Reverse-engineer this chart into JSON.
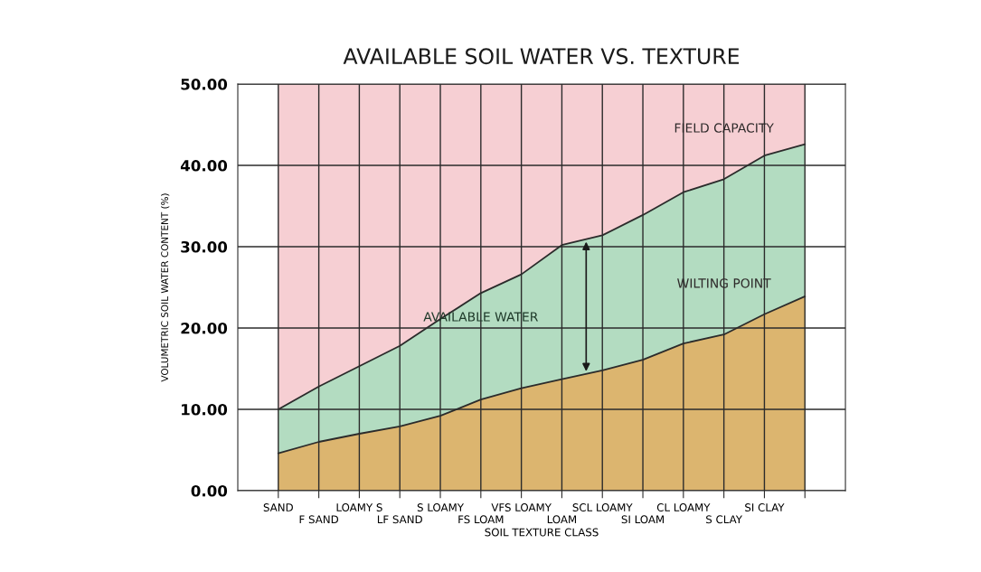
{
  "chart_data": {
    "type": "area",
    "title": "AVAILABLE SOIL WATER VS. TEXTURE",
    "xlabel": "SOIL TEXTURE CLASS",
    "ylabel": "VOLUMETRIC SOIL WATER CONTENT (%)",
    "categories": [
      "SAND",
      "F SAND",
      "LOAMY S",
      "LF SAND",
      "S LOAMY",
      "FS LOAM",
      "VFS LOAMY",
      "LOAM",
      "SCL LOAMY",
      "SI LOAM",
      "CL LOAMY",
      "S CLAY",
      "SI CLAY",
      null
    ],
    "series": [
      {
        "name": "FIELD CAPACITY",
        "color": "#b3dcc1",
        "values": [
          10.0,
          12.8,
          15.3,
          17.8,
          21.1,
          24.3,
          26.6,
          30.2,
          31.4,
          33.9,
          36.7,
          38.3,
          41.2,
          42.6
        ]
      },
      {
        "name": "WILTING POINT",
        "color": "#dcb56f",
        "values": [
          4.6,
          6.0,
          7.0,
          7.9,
          9.2,
          11.2,
          12.6,
          13.7,
          14.8,
          16.1,
          18.1,
          19.2,
          21.7,
          23.9
        ]
      }
    ],
    "bands": [
      {
        "axis": "y",
        "from": 0,
        "to": 50,
        "color": "#f6cfd3"
      }
    ],
    "annotations": [
      "AVAILABLE WATER"
    ],
    "ylim": [
      0,
      50
    ],
    "yticks": [
      {
        "value": 0,
        "label": "0.00"
      },
      {
        "value": 10,
        "label": "10.00"
      },
      {
        "value": 20,
        "label": "20.00"
      },
      {
        "value": 30,
        "label": "30.00"
      },
      {
        "value": 40,
        "label": "40.00"
      },
      {
        "value": 50,
        "label": "50.00"
      }
    ],
    "grid": true,
    "legend": false
  }
}
